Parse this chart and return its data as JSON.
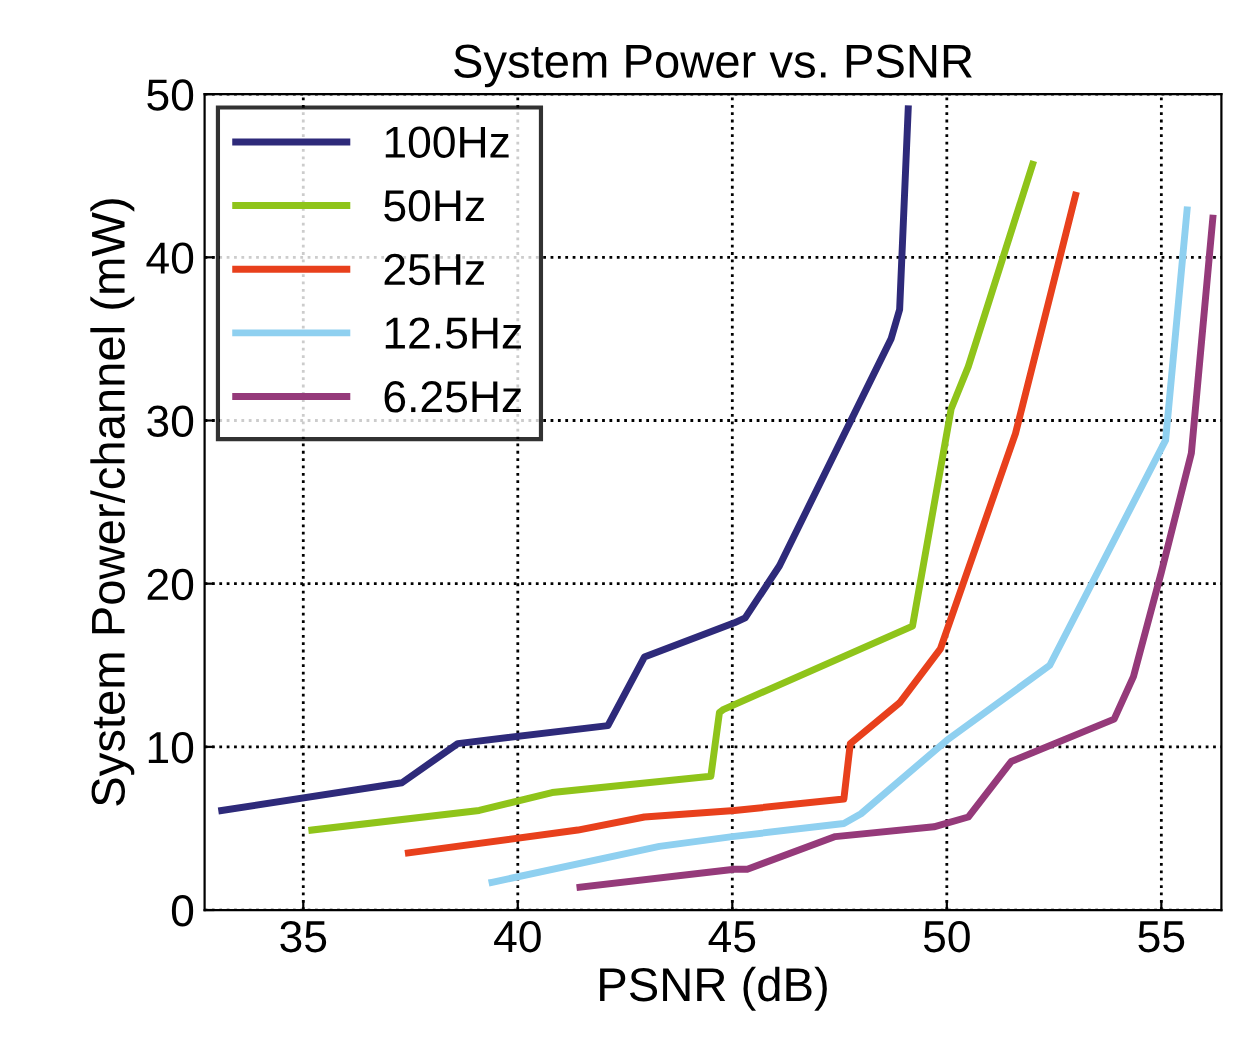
{
  "chart_data": {
    "type": "line",
    "title": "System Power vs. PSNR",
    "xlabel": "PSNR (dB)",
    "ylabel": "System Power/channel (mW)",
    "xlim": [
      32.7,
      56.4
    ],
    "ylim": [
      0,
      50
    ],
    "xticks": [
      35,
      40,
      45,
      50,
      55
    ],
    "yticks": [
      0,
      10,
      20,
      30,
      40,
      50
    ],
    "grid": true,
    "legend": "top left",
    "line_style": "solid",
    "series": [
      {
        "name": "100Hz",
        "color": "#2e2a7a",
        "x": [
          33.1,
          37.3,
          38.6,
          42.1,
          42.95,
          45.05,
          45.3,
          46.1,
          48.7,
          48.9,
          49.1
        ],
        "values": [
          6.1,
          7.8,
          10.2,
          11.3,
          15.5,
          17.6,
          17.9,
          21.1,
          35.0,
          36.8,
          49.1
        ]
      },
      {
        "name": "50Hz",
        "color": "#8fc41a",
        "x": [
          35.2,
          39.1,
          40.8,
          44.5,
          44.7,
          44.8,
          49.2,
          50.1,
          50.5,
          52.0
        ],
        "values": [
          4.9,
          6.1,
          7.2,
          8.2,
          12.1,
          12.3,
          17.4,
          30.7,
          33.3,
          45.7
        ]
      },
      {
        "name": "25Hz",
        "color": "#e8401c",
        "x": [
          37.45,
          41.4,
          42.95,
          45.05,
          47.6,
          47.75,
          48.9,
          49.85,
          51.6,
          53.0
        ],
        "values": [
          3.5,
          4.9,
          5.7,
          6.1,
          6.8,
          10.2,
          12.7,
          16.0,
          29.2,
          43.8
        ]
      },
      {
        "name": "12.5Hz",
        "color": "#8fd0f0",
        "x": [
          39.4,
          43.3,
          45.0,
          47.6,
          48.0,
          50.0,
          52.4,
          55.1,
          55.6
        ],
        "values": [
          1.7,
          3.9,
          4.5,
          5.3,
          5.9,
          10.4,
          15.0,
          28.8,
          42.9
        ]
      },
      {
        "name": "6.25Hz",
        "color": "#953a7a",
        "x": [
          41.45,
          45.05,
          45.35,
          47.4,
          49.7,
          50.5,
          51.5,
          53.9,
          54.35,
          55.0,
          55.7,
          56.2
        ],
        "values": [
          1.4,
          2.5,
          2.5,
          4.5,
          5.1,
          5.7,
          9.1,
          11.7,
          14.3,
          20.7,
          28.0,
          42.4
        ]
      }
    ]
  }
}
